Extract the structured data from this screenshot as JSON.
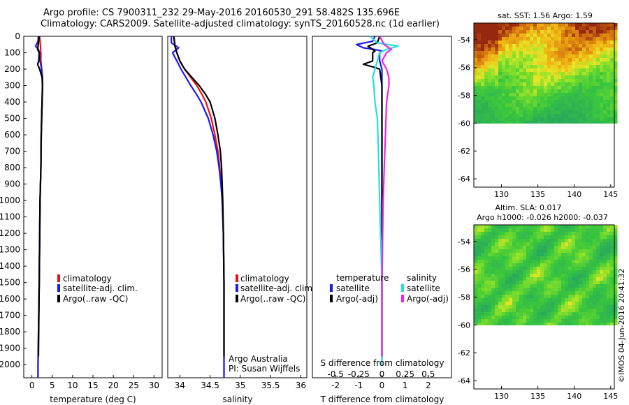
{
  "header": {
    "line1": "Argo profile: CS 7900311_232 29-May-2016 20160530_291 58.482S 135.696E",
    "line2": "Climatology: CARS2009. Satellite-adjusted climatology: synTS_20160528.nc (1d earlier)"
  },
  "footer_stamp": "©IMOS 04-Jun-2016 20:41:32",
  "colors": {
    "climatology": "#ee1111",
    "satellite": "#1a1aee",
    "argo": "#000000",
    "satellite_salinity": "#22e0e0",
    "argo_salinity": "#ee22ee"
  },
  "depth_ticks": [
    "0",
    "100",
    "200",
    "300",
    "400",
    "500",
    "600",
    "700",
    "800",
    "900",
    "1000",
    "1100",
    "1200",
    "1300",
    "1400",
    "1500",
    "1600",
    "1700",
    "1800",
    "1900",
    "2000"
  ],
  "chart_data": [
    {
      "type": "line",
      "id": "temperature",
      "xlabel": "temperature (deg C)",
      "xticks": [
        "0",
        "5",
        "10",
        "15",
        "20",
        "25",
        "30"
      ],
      "xlim": [
        -2,
        32
      ],
      "ylim": [
        2080,
        0
      ],
      "legend_position": "middle",
      "legend": [
        "climatology",
        "satellite-adj. clim.",
        "Argo(..raw -QC)"
      ],
      "series": [
        {
          "name": "climatology",
          "depth": [
            0,
            30,
            60,
            100,
            150,
            200,
            250,
            300,
            400,
            600,
            800,
            1000,
            1500,
            2000,
            2080
          ],
          "values": [
            1.9,
            2.0,
            2.1,
            2.2,
            2.2,
            2.4,
            2.6,
            2.6,
            2.5,
            2.3,
            2.2,
            2.0,
            1.8,
            1.5,
            1.5
          ]
        },
        {
          "name": "satellite-adj. clim.",
          "depth": [
            0,
            30,
            60,
            80,
            100,
            150,
            200,
            250,
            300,
            400,
            600,
            800,
            1000,
            1500,
            2000,
            2080
          ],
          "values": [
            1.6,
            1.5,
            0.9,
            1.6,
            1.9,
            2.0,
            2.4,
            2.6,
            2.6,
            2.5,
            2.3,
            2.2,
            2.0,
            1.8,
            1.5,
            1.5
          ]
        },
        {
          "name": "Argo(..raw -QC)",
          "depth": [
            0,
            40,
            80,
            100,
            150,
            170,
            200,
            250,
            300,
            400,
            600,
            800,
            1000,
            1500,
            1950
          ],
          "values": [
            1.8,
            1.6,
            1.4,
            1.8,
            1.7,
            1.4,
            1.9,
            2.5,
            2.6,
            2.5,
            2.3,
            2.2,
            2.0,
            1.8,
            1.6
          ]
        }
      ]
    },
    {
      "type": "line",
      "id": "salinity",
      "xlabel": "salinity",
      "xticks": [
        "34",
        "34.5",
        "35",
        "35.5",
        "36"
      ],
      "xlim": [
        33.8,
        36.1
      ],
      "ylim": [
        2080,
        0
      ],
      "legend_position": "middle",
      "legend": [
        "climatology",
        "satellite-adj. clim.",
        "Argo(..raw -QC)"
      ],
      "annotation": [
        "Argo Australia",
        "PI: Susan Wijffels"
      ],
      "series": [
        {
          "name": "climatology",
          "depth": [
            0,
            60,
            100,
            150,
            200,
            250,
            300,
            350,
            400,
            500,
            600,
            700,
            800,
            900,
            1000,
            1200,
            1500,
            2000,
            2080
          ],
          "values": [
            33.9,
            33.92,
            33.95,
            34.0,
            34.08,
            34.18,
            34.28,
            34.36,
            34.43,
            34.52,
            34.58,
            34.63,
            34.66,
            34.69,
            34.7,
            34.72,
            34.73,
            34.73,
            34.73
          ]
        },
        {
          "name": "satellite-adj. clim.",
          "depth": [
            0,
            40,
            70,
            100,
            150,
            200,
            250,
            300,
            350,
            400,
            500,
            600,
            700,
            800,
            900,
            1000,
            1200,
            1500,
            2000,
            2080
          ],
          "values": [
            33.86,
            33.86,
            33.98,
            33.88,
            33.95,
            34.02,
            34.1,
            34.18,
            34.27,
            34.35,
            34.47,
            34.55,
            34.61,
            34.65,
            34.68,
            34.7,
            34.72,
            34.73,
            34.73,
            34.73
          ]
        },
        {
          "name": "Argo(..raw -QC)",
          "depth": [
            0,
            60,
            100,
            150,
            200,
            250,
            300,
            350,
            400,
            500,
            600,
            700,
            800,
            900,
            1000,
            1200,
            1500,
            1950
          ],
          "values": [
            33.9,
            33.92,
            33.95,
            34.0,
            34.08,
            34.2,
            34.32,
            34.42,
            34.5,
            34.58,
            34.63,
            34.67,
            34.69,
            34.7,
            34.71,
            34.72,
            34.73,
            34.73
          ]
        }
      ]
    },
    {
      "type": "line",
      "id": "difference",
      "xlabel": "T difference from climatology",
      "xticks": [
        "-2",
        "-1",
        "0",
        "1",
        "2"
      ],
      "top_xlabel": "S difference from climatology",
      "top_xticks": [
        "-0.5",
        "-0.25",
        "0",
        "0.25",
        "0.5"
      ],
      "xlim": [
        -3,
        3
      ],
      "ylim": [
        2080,
        0
      ],
      "legend_position": "middle",
      "legend_groups": [
        {
          "title": "temperature",
          "items": [
            "satellite",
            "Argo(-adj)"
          ]
        },
        {
          "title": "salinity",
          "items": [
            "satellite",
            "Argo(-adj)"
          ]
        }
      ],
      "series": [
        {
          "name": "temperature satellite",
          "depth": [
            0,
            30,
            50,
            70,
            80,
            90,
            100,
            150,
            200,
            300,
            500,
            1000,
            1500,
            2000
          ],
          "values": [
            -0.3,
            -0.4,
            -1.1,
            -0.8,
            -0.3,
            0.0,
            -0.1,
            -0.1,
            0.0,
            0.0,
            0.0,
            0.0,
            0.0,
            0.0
          ]
        },
        {
          "name": "temperature Argo(-adj)",
          "depth": [
            0,
            40,
            60,
            80,
            90,
            100,
            150,
            170,
            190,
            200,
            300,
            500,
            1000,
            1500,
            1950
          ],
          "values": [
            -0.1,
            -0.2,
            -0.6,
            -0.4,
            -0.3,
            -0.4,
            -0.4,
            -0.8,
            -0.3,
            -0.1,
            0.0,
            0.0,
            0.0,
            0.0,
            0.0
          ]
        },
        {
          "name": "salinity satellite",
          "depth": [
            0,
            40,
            60,
            80,
            100,
            150,
            200,
            250,
            300,
            400,
            500,
            700,
            1000,
            1500,
            2000
          ],
          "values": [
            -0.5,
            -0.2,
            0.7,
            0.2,
            -0.1,
            -0.2,
            -0.3,
            -0.4,
            -0.35,
            -0.3,
            -0.2,
            -0.15,
            -0.1,
            0.0,
            0.0
          ]
        },
        {
          "name": "salinity Argo(-adj)",
          "depth": [
            0,
            50,
            80,
            100,
            150,
            200,
            250,
            300,
            400,
            600,
            800,
            1000,
            1500,
            1950
          ],
          "values": [
            -0.1,
            0.1,
            0.4,
            0.2,
            0.0,
            0.2,
            0.3,
            0.3,
            0.2,
            0.15,
            0.1,
            0.05,
            0.0,
            0.0
          ]
        }
      ]
    },
    {
      "type": "heatmap",
      "id": "sst_map",
      "title": "sat. SST: 1.56 Argo: 1.59",
      "xticks": [
        "130",
        "135",
        "140",
        "145"
      ],
      "yticks": [
        "-54",
        "-56",
        "-58",
        "-60",
        "-62",
        "-64"
      ],
      "xlim": [
        126.2,
        145.5
      ],
      "ylim": [
        -64.6,
        -52.8
      ]
    },
    {
      "type": "heatmap",
      "id": "sla_map",
      "title_line1": "Altim. SLA: 0.017",
      "title_line2": "Argo h1000: -0.026 h2000: -0.037",
      "xticks": [
        "130",
        "135",
        "140",
        "145"
      ],
      "yticks": [
        "-54",
        "-56",
        "-58",
        "-60",
        "-62",
        "-64"
      ],
      "xlim": [
        126.2,
        145.5
      ],
      "ylim": [
        -64.6,
        -52.8
      ]
    }
  ]
}
